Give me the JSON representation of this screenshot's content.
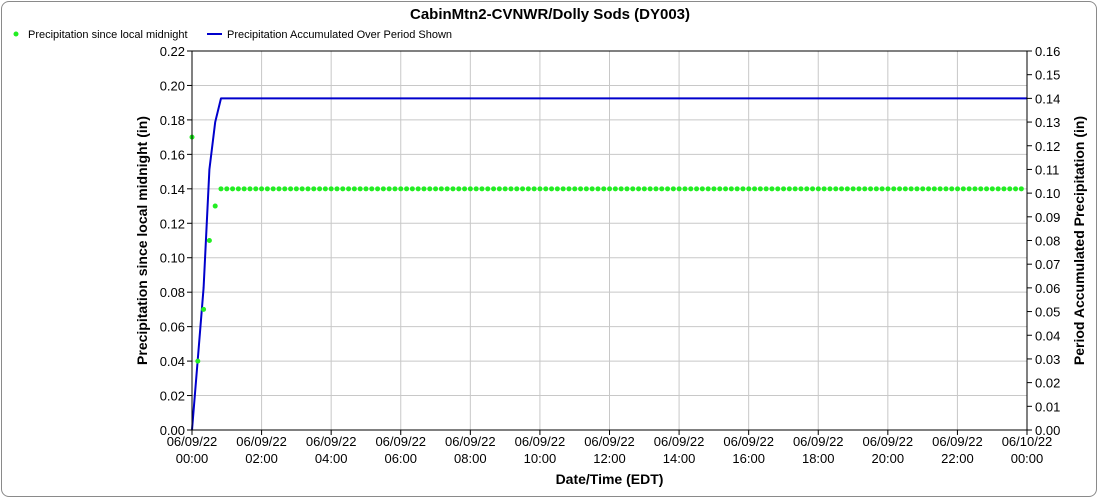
{
  "chart_data": {
    "type": "line",
    "title": "CabinMtn2-CVNWR/Dolly Sods (DY003)",
    "xlabel": "Date/Time (EDT)",
    "ylabel_left": "Precipitation since local midnight (in)",
    "ylabel_right": "Period Accumulated Precipitation (in)",
    "x_ticks": [
      [
        "06/09/22",
        "00:00"
      ],
      [
        "06/09/22",
        "02:00"
      ],
      [
        "06/09/22",
        "04:00"
      ],
      [
        "06/09/22",
        "06:00"
      ],
      [
        "06/09/22",
        "08:00"
      ],
      [
        "06/09/22",
        "10:00"
      ],
      [
        "06/09/22",
        "12:00"
      ],
      [
        "06/09/22",
        "14:00"
      ],
      [
        "06/09/22",
        "16:00"
      ],
      [
        "06/09/22",
        "18:00"
      ],
      [
        "06/09/22",
        "20:00"
      ],
      [
        "06/09/22",
        "22:00"
      ],
      [
        "06/10/22",
        "00:00"
      ]
    ],
    "x_unit": "hours since 06/09/22 00:00",
    "xlim": [
      0,
      24
    ],
    "ylim_left": [
      0,
      0.22
    ],
    "yticks_left": [
      0.0,
      0.02,
      0.04,
      0.06,
      0.08,
      0.1,
      0.12,
      0.14,
      0.16,
      0.18,
      0.2,
      0.22
    ],
    "ylim_right": [
      0,
      0.16
    ],
    "yticks_right": [
      0.0,
      0.01,
      0.02,
      0.03,
      0.04,
      0.05,
      0.06,
      0.07,
      0.08,
      0.09,
      0.1,
      0.11,
      0.12,
      0.13,
      0.14,
      0.15,
      0.16
    ],
    "grid": true,
    "legend_position": "top-left",
    "series": [
      {
        "name": "Precipitation since local midnight",
        "kind": "points",
        "axis": "left",
        "color": "#22ee22",
        "points": [
          [
            0.0,
            0.17
          ],
          [
            0.167,
            0.04
          ],
          [
            0.333,
            0.07
          ],
          [
            0.5,
            0.11
          ],
          [
            0.667,
            0.13
          ],
          {
            "from": 0.833,
            "to": 24.0,
            "step": 0.1667,
            "y": 0.14
          }
        ]
      },
      {
        "name": "Precipitation Accumulated Over Period Shown",
        "kind": "line",
        "axis": "right",
        "color": "#0000cc",
        "points": [
          [
            0.0,
            0.0
          ],
          [
            0.167,
            0.03
          ],
          [
            0.333,
            0.06
          ],
          [
            0.5,
            0.11
          ],
          [
            0.667,
            0.13
          ],
          [
            0.833,
            0.14
          ],
          [
            24.0,
            0.14
          ]
        ]
      }
    ]
  }
}
